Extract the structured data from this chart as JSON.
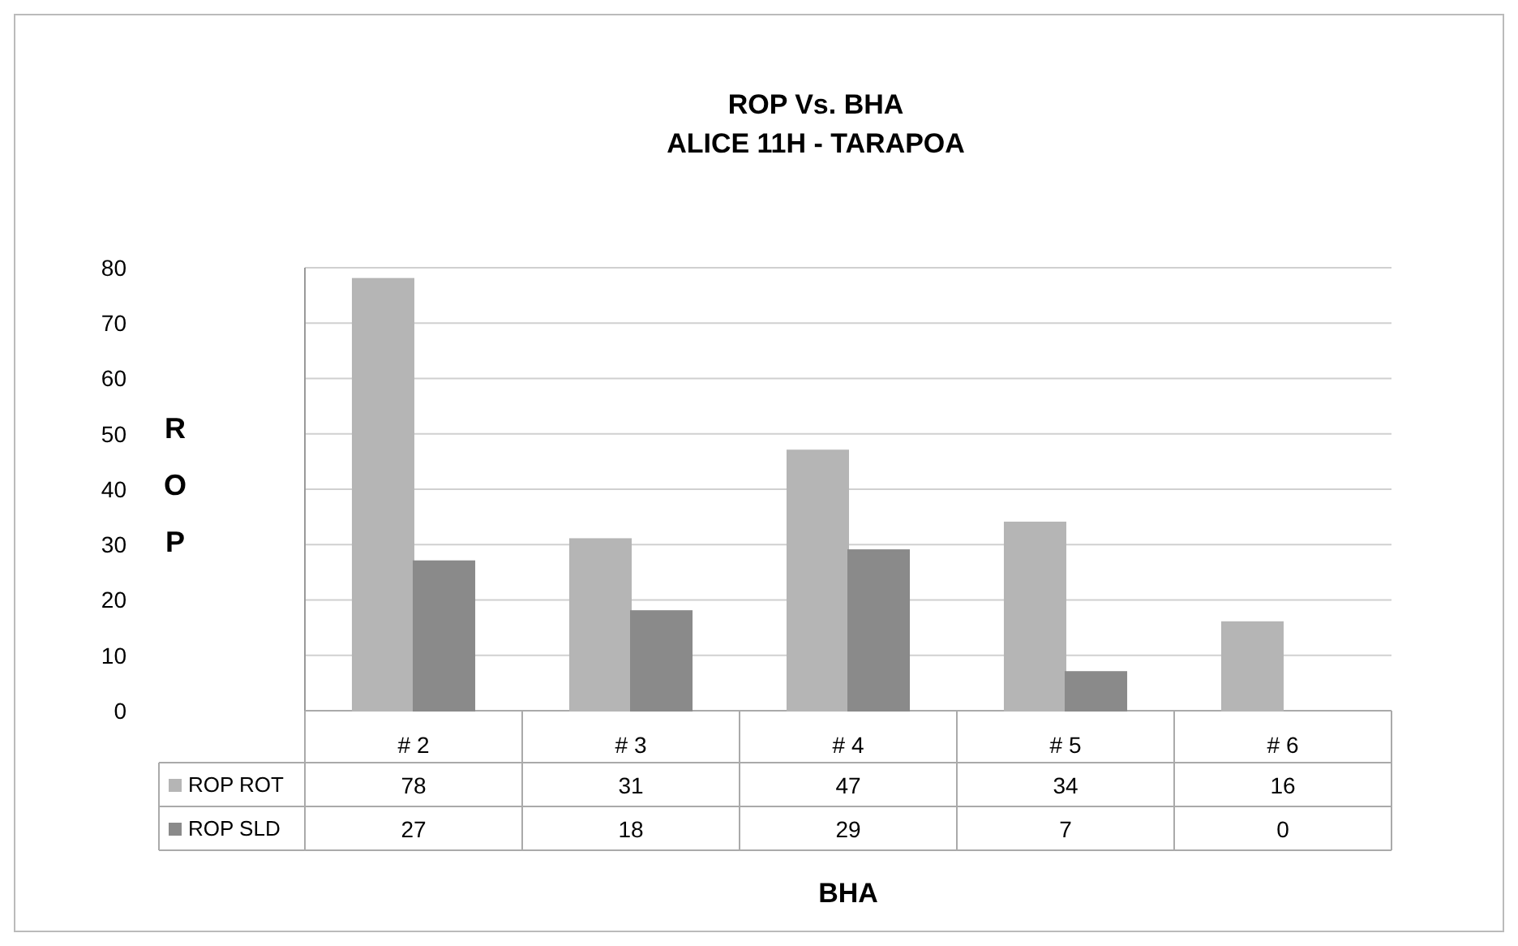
{
  "chart_data": {
    "type": "bar",
    "title": "ROP Vs. BHA",
    "subtitle": "ALICE 11H - TARAPOA",
    "xlabel": "BHA",
    "ylabel": "ROP",
    "categories": [
      "# 2",
      "# 3",
      "# 4",
      "# 5",
      "# 6"
    ],
    "series": [
      {
        "name": "ROP ROT",
        "color": "#b5b5b5",
        "values": [
          78,
          31,
          47,
          34,
          16
        ]
      },
      {
        "name": "ROP SLD",
        "color": "#8a8a8a",
        "values": [
          27,
          18,
          29,
          7,
          0
        ]
      }
    ],
    "ylim": [
      0,
      80
    ],
    "yticks": [
      0,
      10,
      20,
      30,
      40,
      50,
      60,
      70,
      80
    ],
    "grid": "y",
    "data_labels": true,
    "legend": "bottom left"
  }
}
